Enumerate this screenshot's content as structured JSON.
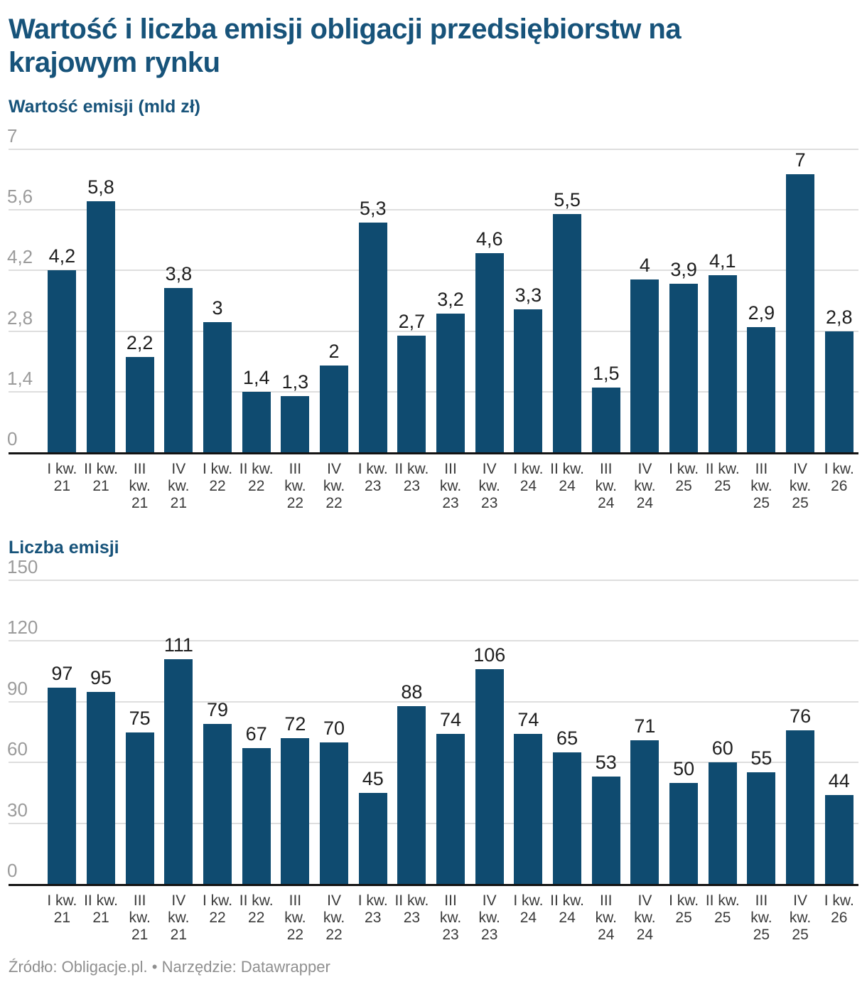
{
  "header": {
    "title": "Wartość i liczba emisji obligacji przedsiębiorstw na krajowym rynku"
  },
  "footer": {
    "text": "Źródło: Obligacje.pl. • Narzędzie: Datawrapper"
  },
  "colors": {
    "heading": "#17537A",
    "bar": "#0F4B70",
    "grid": "#DEDEDE",
    "axis": "#141414",
    "y_tick_label": "#9B9B9B",
    "value_label": "#1F1F1F",
    "x_tick_label": "#3A3A3A",
    "footer": "#8F8F8F"
  },
  "chart_data": [
    {
      "type": "bar",
      "title": "Wartość emisji (mld zł)",
      "categories": [
        [
          "I kw.",
          "21"
        ],
        [
          "II kw.",
          "21"
        ],
        [
          "III",
          "kw.",
          "21"
        ],
        [
          "IV",
          "kw.",
          "21"
        ],
        [
          "I kw.",
          "22"
        ],
        [
          "II kw.",
          "22"
        ],
        [
          "III",
          "kw.",
          "22"
        ],
        [
          "IV",
          "kw.",
          "22"
        ],
        [
          "I kw.",
          "23"
        ],
        [
          "II kw.",
          "23"
        ],
        [
          "III",
          "kw.",
          "23"
        ],
        [
          "IV",
          "kw.",
          "23"
        ],
        [
          "I kw.",
          "24"
        ],
        [
          "II kw.",
          "24"
        ],
        [
          "III",
          "kw.",
          "24"
        ],
        [
          "IV",
          "kw.",
          "24"
        ],
        [
          "I kw.",
          "25"
        ],
        [
          "II kw.",
          "25"
        ],
        [
          "III",
          "kw.",
          "25"
        ],
        [
          "IV",
          "kw.",
          "25"
        ],
        [
          "I kw.",
          "26"
        ]
      ],
      "values": [
        4.2,
        5.8,
        2.2,
        3.8,
        3,
        1.4,
        1.3,
        2,
        5.3,
        2.7,
        3.2,
        4.6,
        3.3,
        5.5,
        1.5,
        4,
        3.9,
        4.1,
        2.9,
        7,
        2.8
      ],
      "value_labels": [
        "4,2",
        "5,8",
        "2,2",
        "3,8",
        "3",
        "1,4",
        "1,3",
        "2",
        "5,3",
        "2,7",
        "3,2",
        "4,6",
        "3,3",
        "5,5",
        "1,5",
        "4",
        "3,9",
        "4,1",
        "2,9",
        "7",
        "2,8"
      ],
      "xlabel": "",
      "ylabel": "Wartość emisji (mld zł)",
      "ylim": [
        0,
        7
      ],
      "y_ticks": [
        0,
        1.4,
        2.8,
        4.2,
        5.6,
        7
      ],
      "y_tick_labels": [
        "0",
        "1,4",
        "2,8",
        "4,2",
        "5,6",
        "7"
      ],
      "grid": "on",
      "legend": "none",
      "bar_color": "#0F4B70"
    },
    {
      "type": "bar",
      "title": "Liczba emisji",
      "categories": [
        [
          "I kw.",
          "21"
        ],
        [
          "II kw.",
          "21"
        ],
        [
          "III",
          "kw.",
          "21"
        ],
        [
          "IV",
          "kw.",
          "21"
        ],
        [
          "I kw.",
          "22"
        ],
        [
          "II kw.",
          "22"
        ],
        [
          "III",
          "kw.",
          "22"
        ],
        [
          "IV",
          "kw.",
          "22"
        ],
        [
          "I kw.",
          "23"
        ],
        [
          "II kw.",
          "23"
        ],
        [
          "III",
          "kw.",
          "23"
        ],
        [
          "IV",
          "kw.",
          "23"
        ],
        [
          "I kw.",
          "24"
        ],
        [
          "II kw.",
          "24"
        ],
        [
          "III",
          "kw.",
          "24"
        ],
        [
          "IV",
          "kw.",
          "24"
        ],
        [
          "I kw.",
          "25"
        ],
        [
          "II kw.",
          "25"
        ],
        [
          "III",
          "kw.",
          "25"
        ],
        [
          "IV",
          "kw.",
          "25"
        ],
        [
          "I kw.",
          "26"
        ]
      ],
      "values": [
        97,
        95,
        75,
        111,
        79,
        67,
        72,
        70,
        45,
        88,
        74,
        106,
        74,
        65,
        53,
        71,
        50,
        60,
        55,
        76,
        44
      ],
      "value_labels": [
        "97",
        "95",
        "75",
        "111",
        "79",
        "67",
        "72",
        "70",
        "45",
        "88",
        "74",
        "106",
        "74",
        "65",
        "53",
        "71",
        "50",
        "60",
        "55",
        "76",
        "44"
      ],
      "xlabel": "",
      "ylabel": "Liczba emisji",
      "ylim": [
        0,
        150
      ],
      "y_ticks": [
        0,
        30,
        60,
        90,
        120,
        150
      ],
      "y_tick_labels": [
        "0",
        "30",
        "60",
        "90",
        "120",
        "150"
      ],
      "grid": "on",
      "legend": "none",
      "bar_color": "#0F4B70"
    }
  ]
}
